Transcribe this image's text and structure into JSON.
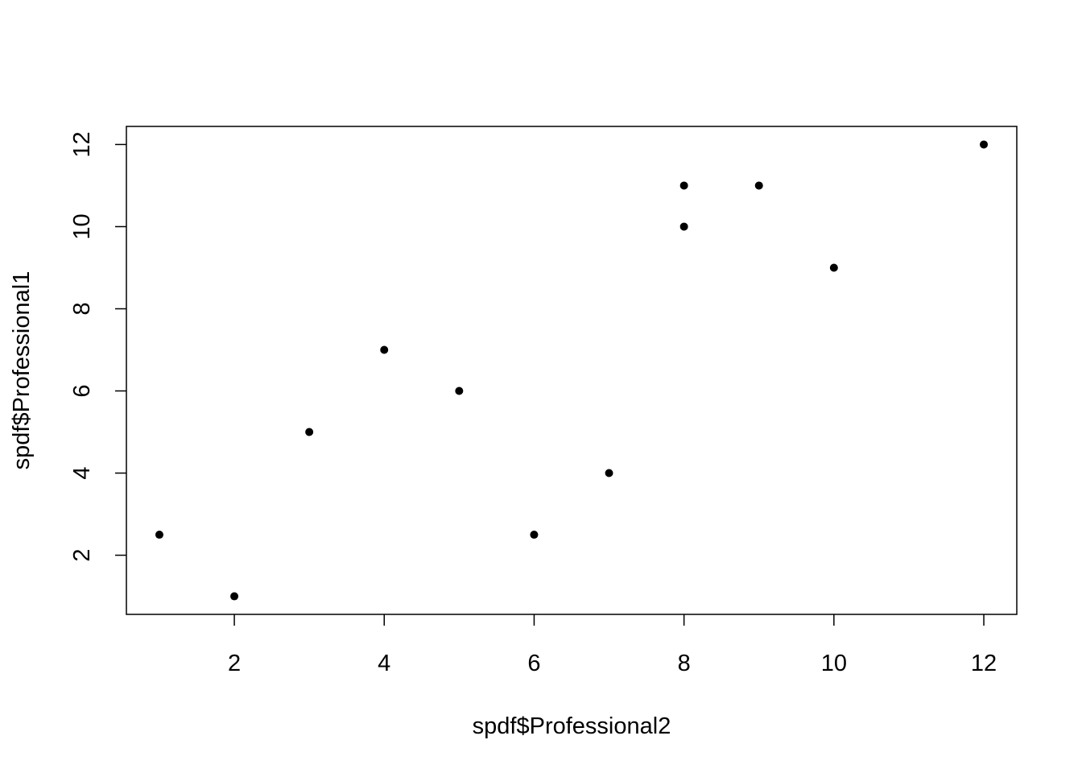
{
  "chart_data": {
    "type": "scatter",
    "title": "",
    "xlabel": "spdf$Professional2",
    "ylabel": "spdf$Professional1",
    "xlim": [
      0.56,
      12.44
    ],
    "ylim": [
      0.56,
      12.44
    ],
    "xticks": [
      2,
      4,
      6,
      8,
      10,
      12
    ],
    "yticks": [
      2,
      4,
      6,
      8,
      10,
      12
    ],
    "grid": false,
    "box": true,
    "marker": "filled-circle",
    "point_color": "#000000",
    "points": [
      {
        "x": 1,
        "y": 2.5
      },
      {
        "x": 2,
        "y": 1
      },
      {
        "x": 3,
        "y": 5
      },
      {
        "x": 4,
        "y": 7
      },
      {
        "x": 5,
        "y": 6
      },
      {
        "x": 6,
        "y": 2.5
      },
      {
        "x": 7,
        "y": 4
      },
      {
        "x": 8,
        "y": 11
      },
      {
        "x": 8,
        "y": 10
      },
      {
        "x": 9,
        "y": 11
      },
      {
        "x": 10,
        "y": 9
      },
      {
        "x": 12,
        "y": 12
      }
    ]
  }
}
